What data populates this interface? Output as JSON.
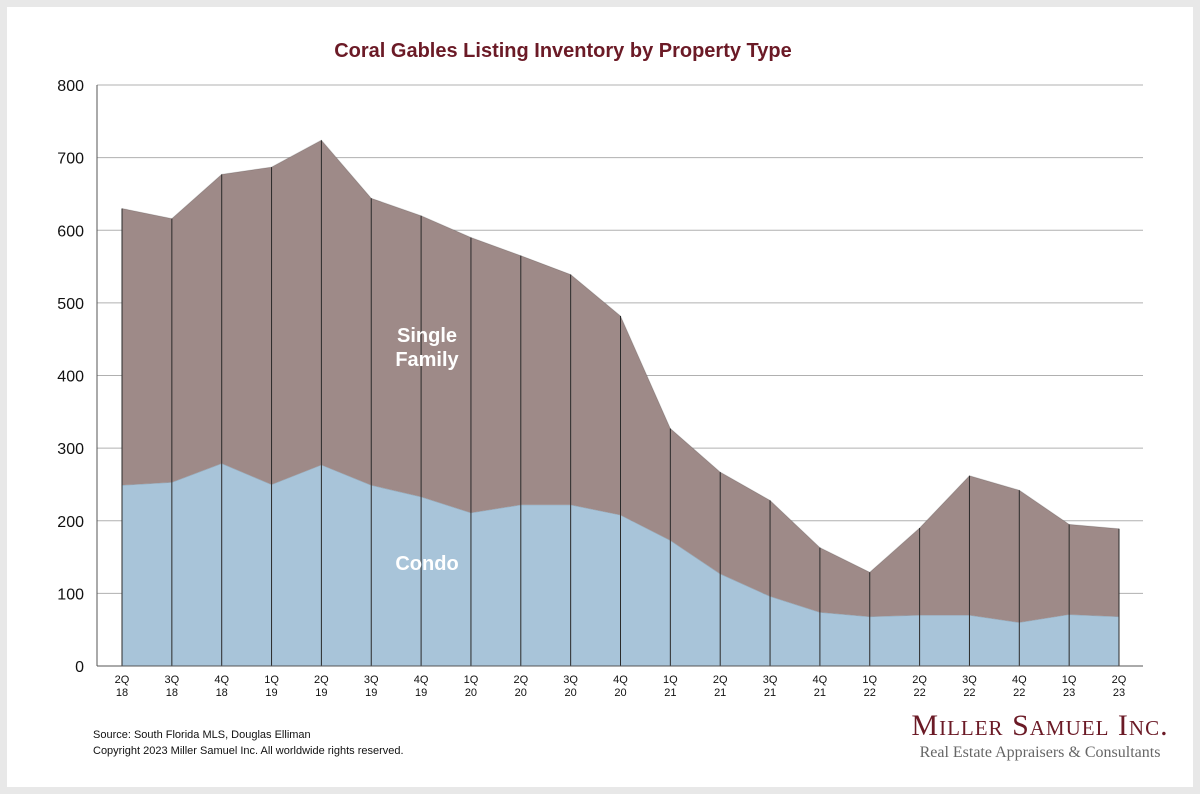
{
  "chart_data": {
    "type": "area",
    "stacked": true,
    "title": "Coral Gables Listing Inventory by Property Type",
    "xlabel": "",
    "ylabel": "",
    "ylim": [
      0,
      800
    ],
    "yticks": [
      0,
      100,
      200,
      300,
      400,
      500,
      600,
      700,
      800
    ],
    "grid": true,
    "categories": [
      "2Q 18",
      "3Q 18",
      "4Q 18",
      "1Q 19",
      "2Q 19",
      "3Q 19",
      "4Q 19",
      "1Q 20",
      "2Q 20",
      "3Q 20",
      "4Q 20",
      "1Q 21",
      "2Q 21",
      "3Q 21",
      "4Q 21",
      "1Q 22",
      "2Q 22",
      "3Q 22",
      "4Q 22",
      "1Q 23",
      "2Q 23"
    ],
    "series": [
      {
        "name": "Condo",
        "color": "#a8c4d9",
        "values": [
          249,
          253,
          279,
          250,
          277,
          249,
          233,
          211,
          222,
          222,
          208,
          173,
          127,
          96,
          74,
          68,
          70,
          70,
          60,
          71,
          68
        ]
      },
      {
        "name": "Single Family",
        "color": "#9e8a88",
        "values": [
          381,
          363,
          398,
          437,
          447,
          395,
          387,
          379,
          343,
          317,
          274,
          154,
          140,
          132,
          89,
          61,
          120,
          192,
          182,
          124,
          121
        ]
      }
    ],
    "area_labels": [
      {
        "lines": [
          "Single",
          "Family"
        ]
      },
      {
        "lines": [
          "Condo"
        ]
      }
    ]
  },
  "footer": {
    "source": "Source: South Florida MLS, Douglas Elliman",
    "copyright": "Copyright 2023 Miller Samuel Inc.  All worldwide rights reserved."
  },
  "logo": {
    "name": "Miller Samuel Inc.",
    "tagline": "Real Estate Appraisers & Consultants"
  }
}
